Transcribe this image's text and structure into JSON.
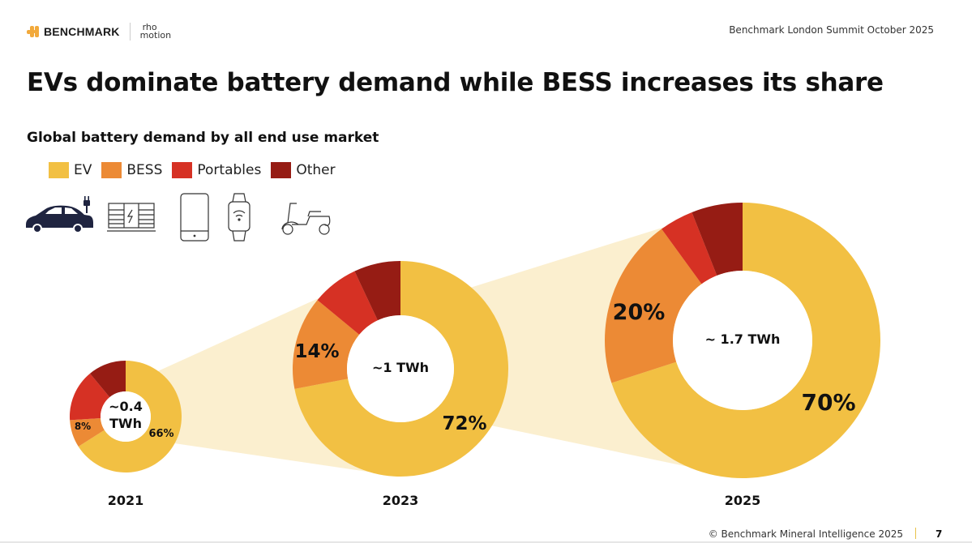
{
  "header": {
    "brand": "BENCHMARK",
    "partner_brand_line1": "rho",
    "partner_brand_line2": "motion",
    "event": "Benchmark London Summit October 2025"
  },
  "title": "EVs dominate battery demand while BESS increases its share",
  "subtitle": "Global battery demand by all end use market",
  "legend": [
    {
      "label": "EV",
      "color": "#f2c043"
    },
    {
      "label": "BESS",
      "color": "#ec8a35"
    },
    {
      "label": "Portables",
      "color": "#d63124"
    },
    {
      "label": "Other",
      "color": "#961c14"
    }
  ],
  "icons": [
    "electric-car-icon",
    "battery-storage-icon",
    "smartphone-icon",
    "smartwatch-icon",
    "scooter-icon"
  ],
  "colors": {
    "connector": "#fbefcf",
    "brand_accent": "#f2a93b"
  },
  "chart_data": {
    "type": "pie",
    "variant": "donut",
    "title": "Global battery demand by all end use market",
    "categories": [
      "EV",
      "BESS",
      "Portables",
      "Other"
    ],
    "series": [
      {
        "name": "2021",
        "total_label": "~0.4 TWh",
        "total_line1": "~0.4",
        "total_line2": "TWh",
        "total_twh": 0.4,
        "values": [
          66,
          8,
          15,
          11
        ],
        "labels": [
          "66%",
          "8%",
          "",
          ""
        ]
      },
      {
        "name": "2023",
        "total_label": "~1 TWh",
        "total_twh": 1.0,
        "values": [
          72,
          14,
          7,
          7
        ],
        "labels": [
          "72%",
          "14%",
          "",
          ""
        ]
      },
      {
        "name": "2025",
        "total_label": "~ 1.7 TWh",
        "total_twh": 1.7,
        "values": [
          70,
          20,
          4,
          6
        ],
        "labels": [
          "70%",
          "20%",
          "",
          ""
        ]
      }
    ],
    "legend_position": "top-left"
  },
  "footer": {
    "copyright": "© Benchmark Mineral Intelligence 2025",
    "page_number": "7"
  }
}
